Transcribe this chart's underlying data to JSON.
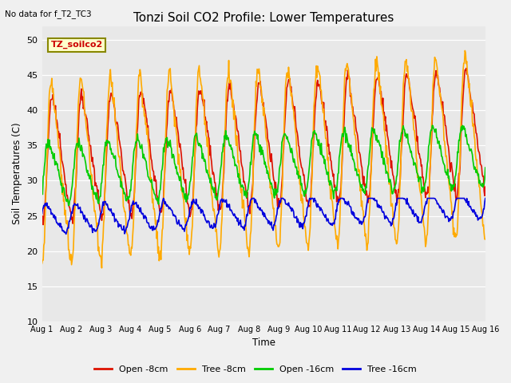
{
  "title": "Tonzi Soil CO2 Profile: Lower Temperatures",
  "subtitle": "No data for f_T2_TC3",
  "xlabel": "Time",
  "ylabel": "Soil Temperatures (C)",
  "legend_label": "TZ_soilco2",
  "ylim": [
    10,
    52
  ],
  "yticks": [
    10,
    15,
    20,
    25,
    30,
    35,
    40,
    45,
    50
  ],
  "xtick_labels": [
    "Aug 1",
    "Aug 2",
    "Aug 3",
    "Aug 4",
    "Aug 5",
    "Aug 6",
    "Aug 7",
    "Aug 8",
    "Aug 9",
    "Aug 10",
    "Aug 11",
    "Aug 12",
    "Aug 13",
    "Aug 14",
    "Aug 15",
    "Aug 16"
  ],
  "fig_bg": "#f0f0f0",
  "plot_bg": "#e8e8e8",
  "grid_color": "#ffffff",
  "series_colors": {
    "open8": "#dd1100",
    "tree8": "#ffaa00",
    "open16": "#00cc00",
    "tree16": "#0000dd"
  },
  "line_width": 1.2,
  "legend_entries": [
    "Open -8cm",
    "Tree -8cm",
    "Open -16cm",
    "Tree -16cm"
  ],
  "box_facecolor": "#ffffcc",
  "box_edgecolor": "#888800",
  "label_color": "#cc0000"
}
